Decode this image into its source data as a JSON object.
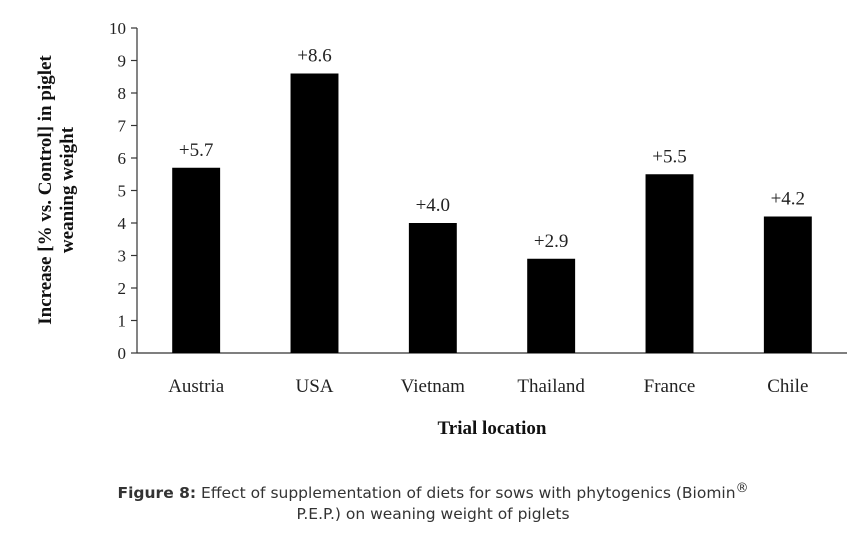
{
  "chart_data": {
    "type": "bar",
    "categories": [
      "Austria",
      "USA",
      "Vietnam",
      "Thailand",
      "France",
      "Chile"
    ],
    "values": [
      5.7,
      8.6,
      4.0,
      2.9,
      5.5,
      4.2
    ],
    "data_labels": [
      "+5.7",
      "+8.6",
      "+4.0",
      "+2.9",
      "+5.5",
      "+4.2"
    ],
    "title": "",
    "xlabel": "Trial location",
    "ylabel_lines": [
      "Increase [% vs. Control] in piglet",
      "weaning weight"
    ],
    "ylim": [
      0,
      10
    ],
    "yticks": [
      0,
      1,
      2,
      3,
      4,
      5,
      6,
      7,
      8,
      9,
      10
    ],
    "grid": false,
    "legend": "none",
    "bar_color": "#000000"
  },
  "caption": {
    "label": "Figure 8:",
    "text_line1": " Effect of supplementation of diets for sows with phytogenics (Biomin",
    "superscript": "®",
    "text_line2": "P.E.P.) on weaning weight of piglets"
  }
}
